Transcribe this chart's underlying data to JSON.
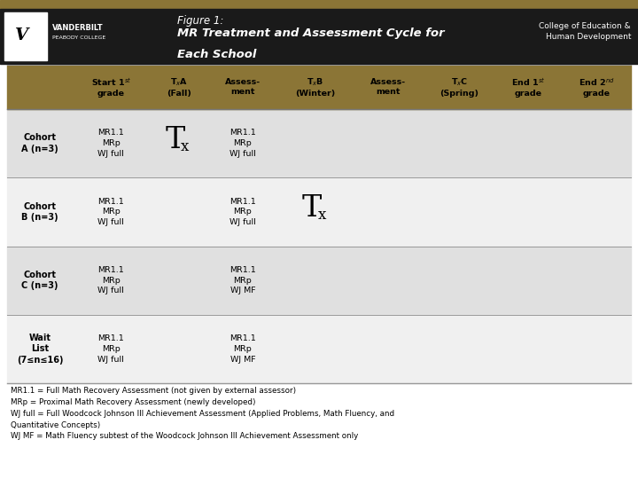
{
  "fig_width": 7.2,
  "fig_height": 5.4,
  "dpi": 100,
  "header_bg": "#1a1a1a",
  "header_gold_bar": "#8B7536",
  "table_header_bg": "#8B7536",
  "row_bg_odd": "#e0e0e0",
  "row_bg_even": "#f0f0f0",
  "body_bg": "#ffffff",
  "footnote_text": "MR1.1 = Full Math Recovery Assessment (not given by external assessor)\nMRp = Proximal Math Recovery Assessment (newly developed)\nWJ full = Full Woodcock Johnson III Achievement Assessment (Applied Problems, Math Fluency, and\nQuantitative Concepts)\nWJ MF = Math Fluency subtest of the Woodcock Johnson III Achievement Assessment only",
  "row_label_texts": [
    "Cohort\nA (n=3)",
    "Cohort\nB (n=3)",
    "Cohort\nC (n=3)",
    "Wait\nList\n(7≤n≤16)"
  ]
}
